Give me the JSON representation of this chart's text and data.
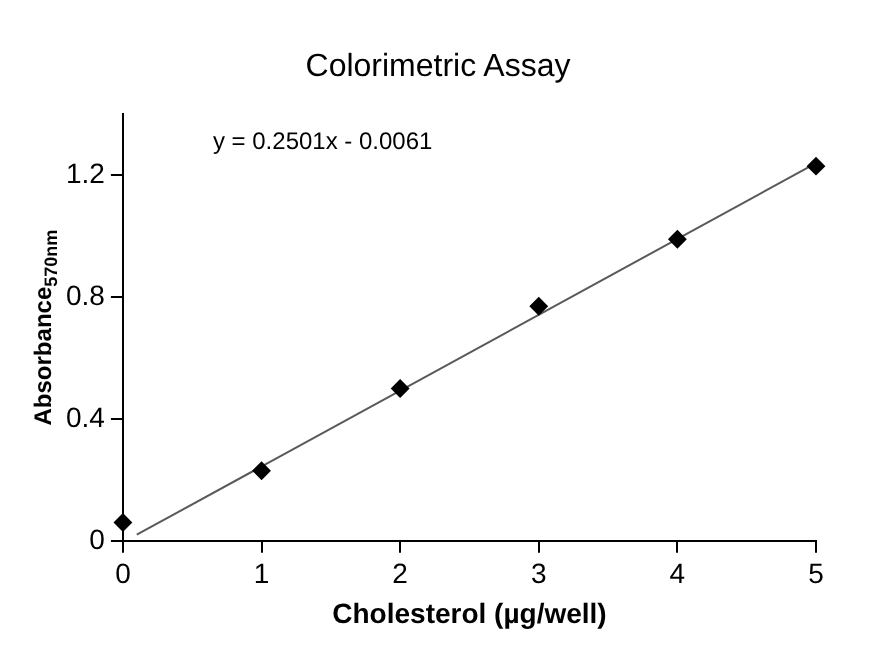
{
  "chart_data": {
    "type": "scatter",
    "title": "Colorimetric Assay",
    "xlabel": "Cholesterol (µg/well)",
    "ylabel": "Absorbance$_{570nm}$",
    "annotations": [
      "y = 0.2501x - 0.0061"
    ],
    "series": [
      {
        "color": "#000000",
        "marker": "diamond",
        "x": [
          0,
          1,
          2,
          3,
          4,
          5
        ],
        "values": [
          0.06,
          0.23,
          0.5,
          0.77,
          0.99,
          1.23
        ]
      },
      {
        "type": "line",
        "color": "#595959",
        "marker": "none",
        "x": [
          0.1,
          5
        ],
        "values": [
          0.02,
          1.24
        ]
      }
    ],
    "xlim": [
      0,
      5
    ],
    "xticks": [
      0,
      1,
      2,
      3,
      4,
      5
    ],
    "ylim": [
      0,
      1.4
    ],
    "yticks": [
      0,
      0.4,
      0.8,
      1.2
    ],
    "grid": false,
    "legend": false
  }
}
